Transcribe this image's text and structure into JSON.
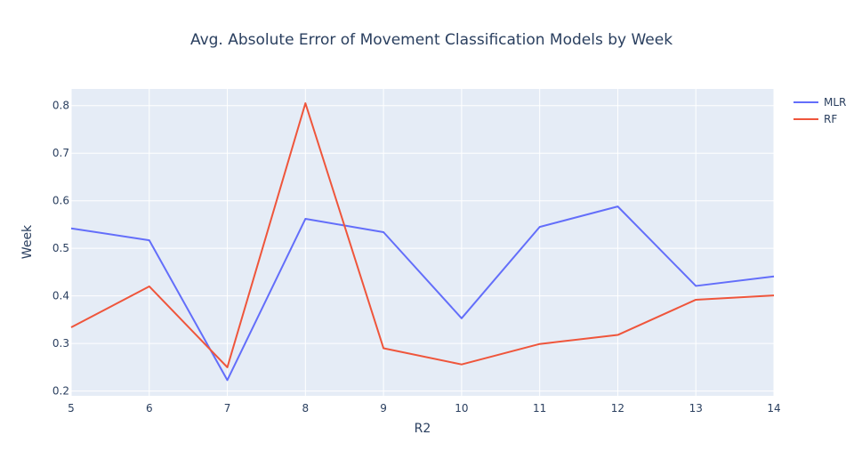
{
  "chart_data": {
    "type": "line",
    "title": "Avg. Absolute Error of Movement Classification Models by Week",
    "xlabel": "R2",
    "ylabel": "Week",
    "x": [
      5,
      6,
      7,
      8,
      9,
      10,
      11,
      12,
      13,
      14
    ],
    "xlim": [
      5,
      14
    ],
    "ylim": [
      0.19,
      0.835
    ],
    "xticks": [
      "5",
      "6",
      "7",
      "8",
      "9",
      "10",
      "11",
      "12",
      "13",
      "14"
    ],
    "yticks": [
      "0.2",
      "0.3",
      "0.4",
      "0.5",
      "0.6",
      "0.7",
      "0.8"
    ],
    "grid": true,
    "legend_position": "top-right",
    "series": [
      {
        "name": "MLR",
        "color": "#636efa",
        "values": [
          0.542,
          0.517,
          0.223,
          0.562,
          0.534,
          0.353,
          0.545,
          0.588,
          0.421,
          0.441
        ]
      },
      {
        "name": "RF",
        "color": "#ef553b",
        "values": [
          0.334,
          0.42,
          0.25,
          0.805,
          0.29,
          0.256,
          0.299,
          0.318,
          0.392,
          0.401
        ]
      }
    ],
    "colors": {
      "plot_bg": "#e5ecf6",
      "grid": "#ffffff",
      "text": "#2a3f5f"
    }
  }
}
